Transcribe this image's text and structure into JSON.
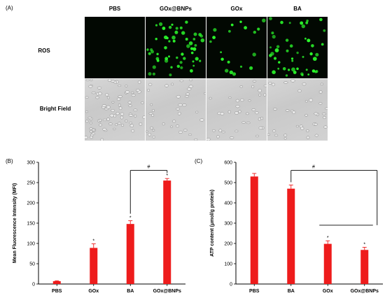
{
  "panel_a": {
    "label": "(A)",
    "columns": [
      "PBS",
      "GOx@BNPs",
      "GOx",
      "BA"
    ],
    "rows": [
      "ROS",
      "Bright Field"
    ],
    "ros_density": [
      0,
      1,
      0.35,
      0.85
    ],
    "colors": {
      "ros_bg": "#020802",
      "ros_cell": "#2cff2c",
      "bf_bg": "#cfcfcf"
    }
  },
  "chart_data": [
    {
      "type": "bar",
      "panel_label": "(B)",
      "ylabel": "Mean Fluorescence Intensity (MFI)",
      "categories": [
        "PBS",
        "GOx",
        "BA",
        "GOx@BNPs"
      ],
      "values": [
        7,
        89,
        148,
        255
      ],
      "errors": [
        1,
        10,
        8,
        5
      ],
      "significance": [
        "",
        "*",
        "*",
        "*"
      ],
      "bracket": {
        "from": "BA",
        "to": "GOx@BNPs",
        "label": "#"
      },
      "ylim": [
        0,
        300
      ],
      "yticks": [
        0,
        50,
        100,
        150,
        200,
        250,
        300
      ],
      "color": "#ee1c1c"
    },
    {
      "type": "bar",
      "panel_label": "(C)",
      "ylabel": "ATP content (μmol/g protein)",
      "categories": [
        "PBS",
        "BA",
        "GOx",
        "GOx@BNPs"
      ],
      "values": [
        530,
        470,
        198,
        168
      ],
      "errors": [
        15,
        18,
        15,
        13
      ],
      "significance": [
        "",
        "",
        "*",
        "*"
      ],
      "bracket": {
        "from": "BA",
        "to_group": [
          "GOx",
          "GOx@BNPs"
        ],
        "label": "#"
      },
      "ylim": [
        0,
        600
      ],
      "yticks": [
        0,
        100,
        200,
        300,
        400,
        500,
        600
      ],
      "color": "#ee1c1c"
    }
  ]
}
